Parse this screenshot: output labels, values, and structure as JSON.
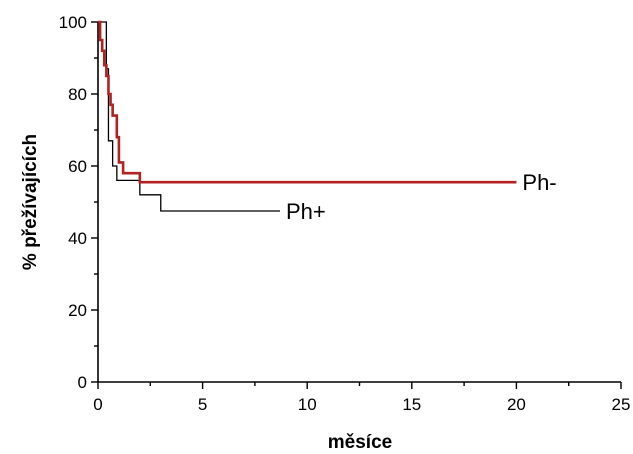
{
  "chart_data": {
    "type": "line",
    "step": true,
    "xlabel": "měsíce",
    "ylabel": "% přežívajících",
    "xlim": [
      0,
      25
    ],
    "ylim": [
      0,
      100
    ],
    "xticks": [
      "0",
      "5",
      "10",
      "15",
      "20",
      "25"
    ],
    "yticks": [
      "0",
      "20",
      "40",
      "60",
      "80",
      "100"
    ],
    "grid": false,
    "series": [
      {
        "name": "Ph-",
        "color": "#b22222",
        "points": [
          [
            0,
            100
          ],
          [
            0.1,
            100
          ],
          [
            0.1,
            95
          ],
          [
            0.2,
            95
          ],
          [
            0.2,
            92
          ],
          [
            0.3,
            92
          ],
          [
            0.3,
            88
          ],
          [
            0.4,
            88
          ],
          [
            0.4,
            85
          ],
          [
            0.5,
            85
          ],
          [
            0.5,
            80
          ],
          [
            0.6,
            80
          ],
          [
            0.6,
            77
          ],
          [
            0.7,
            77
          ],
          [
            0.7,
            74
          ],
          [
            0.9,
            74
          ],
          [
            0.9,
            68
          ],
          [
            1.0,
            68
          ],
          [
            1.0,
            61
          ],
          [
            1.2,
            61
          ],
          [
            1.2,
            58
          ],
          [
            2.0,
            58
          ],
          [
            2.0,
            55.5
          ],
          [
            20,
            55.5
          ]
        ]
      },
      {
        "name": "Ph+",
        "color": "#000000",
        "points": [
          [
            0,
            100
          ],
          [
            0.4,
            100
          ],
          [
            0.4,
            87
          ],
          [
            0.5,
            87
          ],
          [
            0.5,
            67
          ],
          [
            0.7,
            67
          ],
          [
            0.7,
            60
          ],
          [
            0.9,
            60
          ],
          [
            0.9,
            56
          ],
          [
            2.0,
            56
          ],
          [
            2.0,
            52
          ],
          [
            3.0,
            52
          ],
          [
            3.0,
            47.5
          ],
          [
            8.7,
            47.5
          ]
        ]
      }
    ]
  }
}
